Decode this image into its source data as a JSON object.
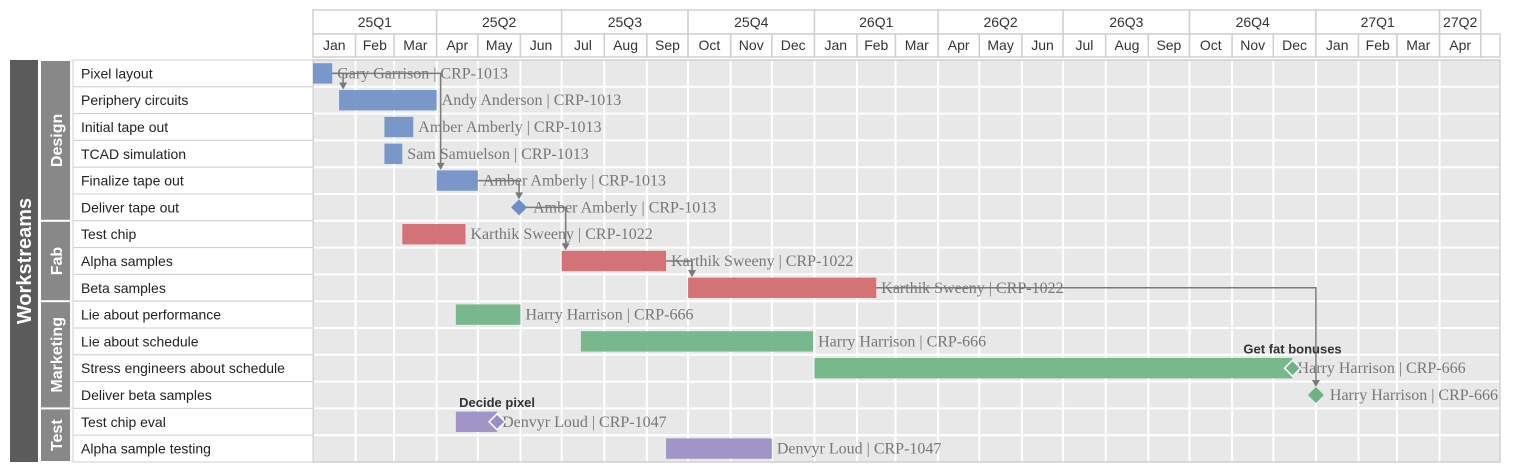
{
  "chart_data": {
    "type": "gantt",
    "quarters": [
      "25Q1",
      "25Q2",
      "25Q3",
      "25Q4",
      "26Q1",
      "26Q2",
      "26Q3",
      "26Q4",
      "27Q1",
      "27Q2"
    ],
    "months": [
      "Jan",
      "Feb",
      "Mar",
      "Apr",
      "May",
      "Jun",
      "Jul",
      "Aug",
      "Sep",
      "Oct",
      "Nov",
      "Dec",
      "Jan",
      "Feb",
      "Mar",
      "Apr",
      "May",
      "Jun",
      "Jul",
      "Aug",
      "Sep",
      "Oct",
      "Nov",
      "Dec",
      "Jan",
      "Feb",
      "Mar",
      "Apr"
    ],
    "x_start": "2025-01-01",
    "x_end": "2027-05-15",
    "workstream_title": "Workstreams",
    "groups": [
      {
        "name": "Design",
        "colour": "#6f8fc4",
        "tasks": [
          0,
          1,
          2,
          3,
          4,
          5
        ]
      },
      {
        "name": "Fab",
        "colour": "#d0686e",
        "tasks": [
          6,
          7,
          8
        ]
      },
      {
        "name": "Marketing",
        "colour": "#6db383",
        "tasks": [
          9,
          10,
          11,
          12
        ]
      },
      {
        "name": "Test",
        "colour": "#9a8cc4",
        "tasks": [
          13,
          14
        ]
      }
    ],
    "tasks": [
      {
        "name": "Pixel layout",
        "start": "2025-01-01",
        "end": "2025-01-15",
        "label": "Gary Garrison | CRP-1013"
      },
      {
        "name": "Periphery circuits",
        "start": "2025-01-20",
        "end": "2025-04-01",
        "label": "Andy Anderson | CRP-1013"
      },
      {
        "name": "Initial tape out",
        "start": "2025-02-22",
        "end": "2025-03-15",
        "label": "Amber Amberly | CRP-1013"
      },
      {
        "name": "TCAD simulation",
        "start": "2025-02-22",
        "end": "2025-03-07",
        "label": "Sam Samuelson | CRP-1013"
      },
      {
        "name": "Finalize tape out",
        "start": "2025-04-01",
        "end": "2025-05-01",
        "label": "Amber Amberly | CRP-1013"
      },
      {
        "name": "Deliver tape out",
        "start": "2025-05-31",
        "end": null,
        "label": "Amber Amberly | CRP-1013"
      },
      {
        "name": "Test chip",
        "start": "2025-03-07",
        "end": "2025-04-22",
        "label": "Karthik Sweeny | CRP-1022"
      },
      {
        "name": "Alpha samples",
        "start": "2025-07-01",
        "end": "2025-09-15",
        "label": "Karthik Sweeny | CRP-1022"
      },
      {
        "name": "Beta samples",
        "start": "2025-10-01",
        "end": "2026-02-15",
        "label": "Karthik Sweeny | CRP-1022"
      },
      {
        "name": "Lie about performance",
        "start": "2025-04-15",
        "end": "2025-06-01",
        "label": "Harry Harrison | CRP-666"
      },
      {
        "name": "Lie about schedule",
        "start": "2025-07-15",
        "end": "2025-12-31",
        "label": "Harry Harrison | CRP-666"
      },
      {
        "name": "Stress engineers about schedule",
        "start": "2026-01-01",
        "end": "2026-12-15",
        "label": "Harry Harrison | CRP-666"
      },
      {
        "name": "Deliver beta samples",
        "start": "2027-01-01",
        "end": null,
        "label": "Harry Harrison | CRP-666"
      },
      {
        "name": "Test chip eval",
        "start": "2025-04-15",
        "end": "2025-05-15",
        "label": "Denvyr Loud | CRP-1047"
      },
      {
        "name": "Alpha sample testing",
        "start": "2025-09-15",
        "end": "2025-12-01",
        "label": "Denvyr Loud | CRP-1047"
      }
    ],
    "milestones": [
      {
        "task": 11,
        "date": "2026-12-15",
        "text": "Get fat bonuses"
      },
      {
        "task": 13,
        "date": "2025-05-15",
        "text": "Decide pixel"
      }
    ],
    "dependencies": [
      {
        "from": 0,
        "to": 1
      },
      {
        "from": 0,
        "to": 4
      },
      {
        "from": 4,
        "to": 5
      },
      {
        "from": 5,
        "to": 7
      },
      {
        "from": 7,
        "to": 8
      },
      {
        "from": 8,
        "to": 12
      }
    ]
  }
}
